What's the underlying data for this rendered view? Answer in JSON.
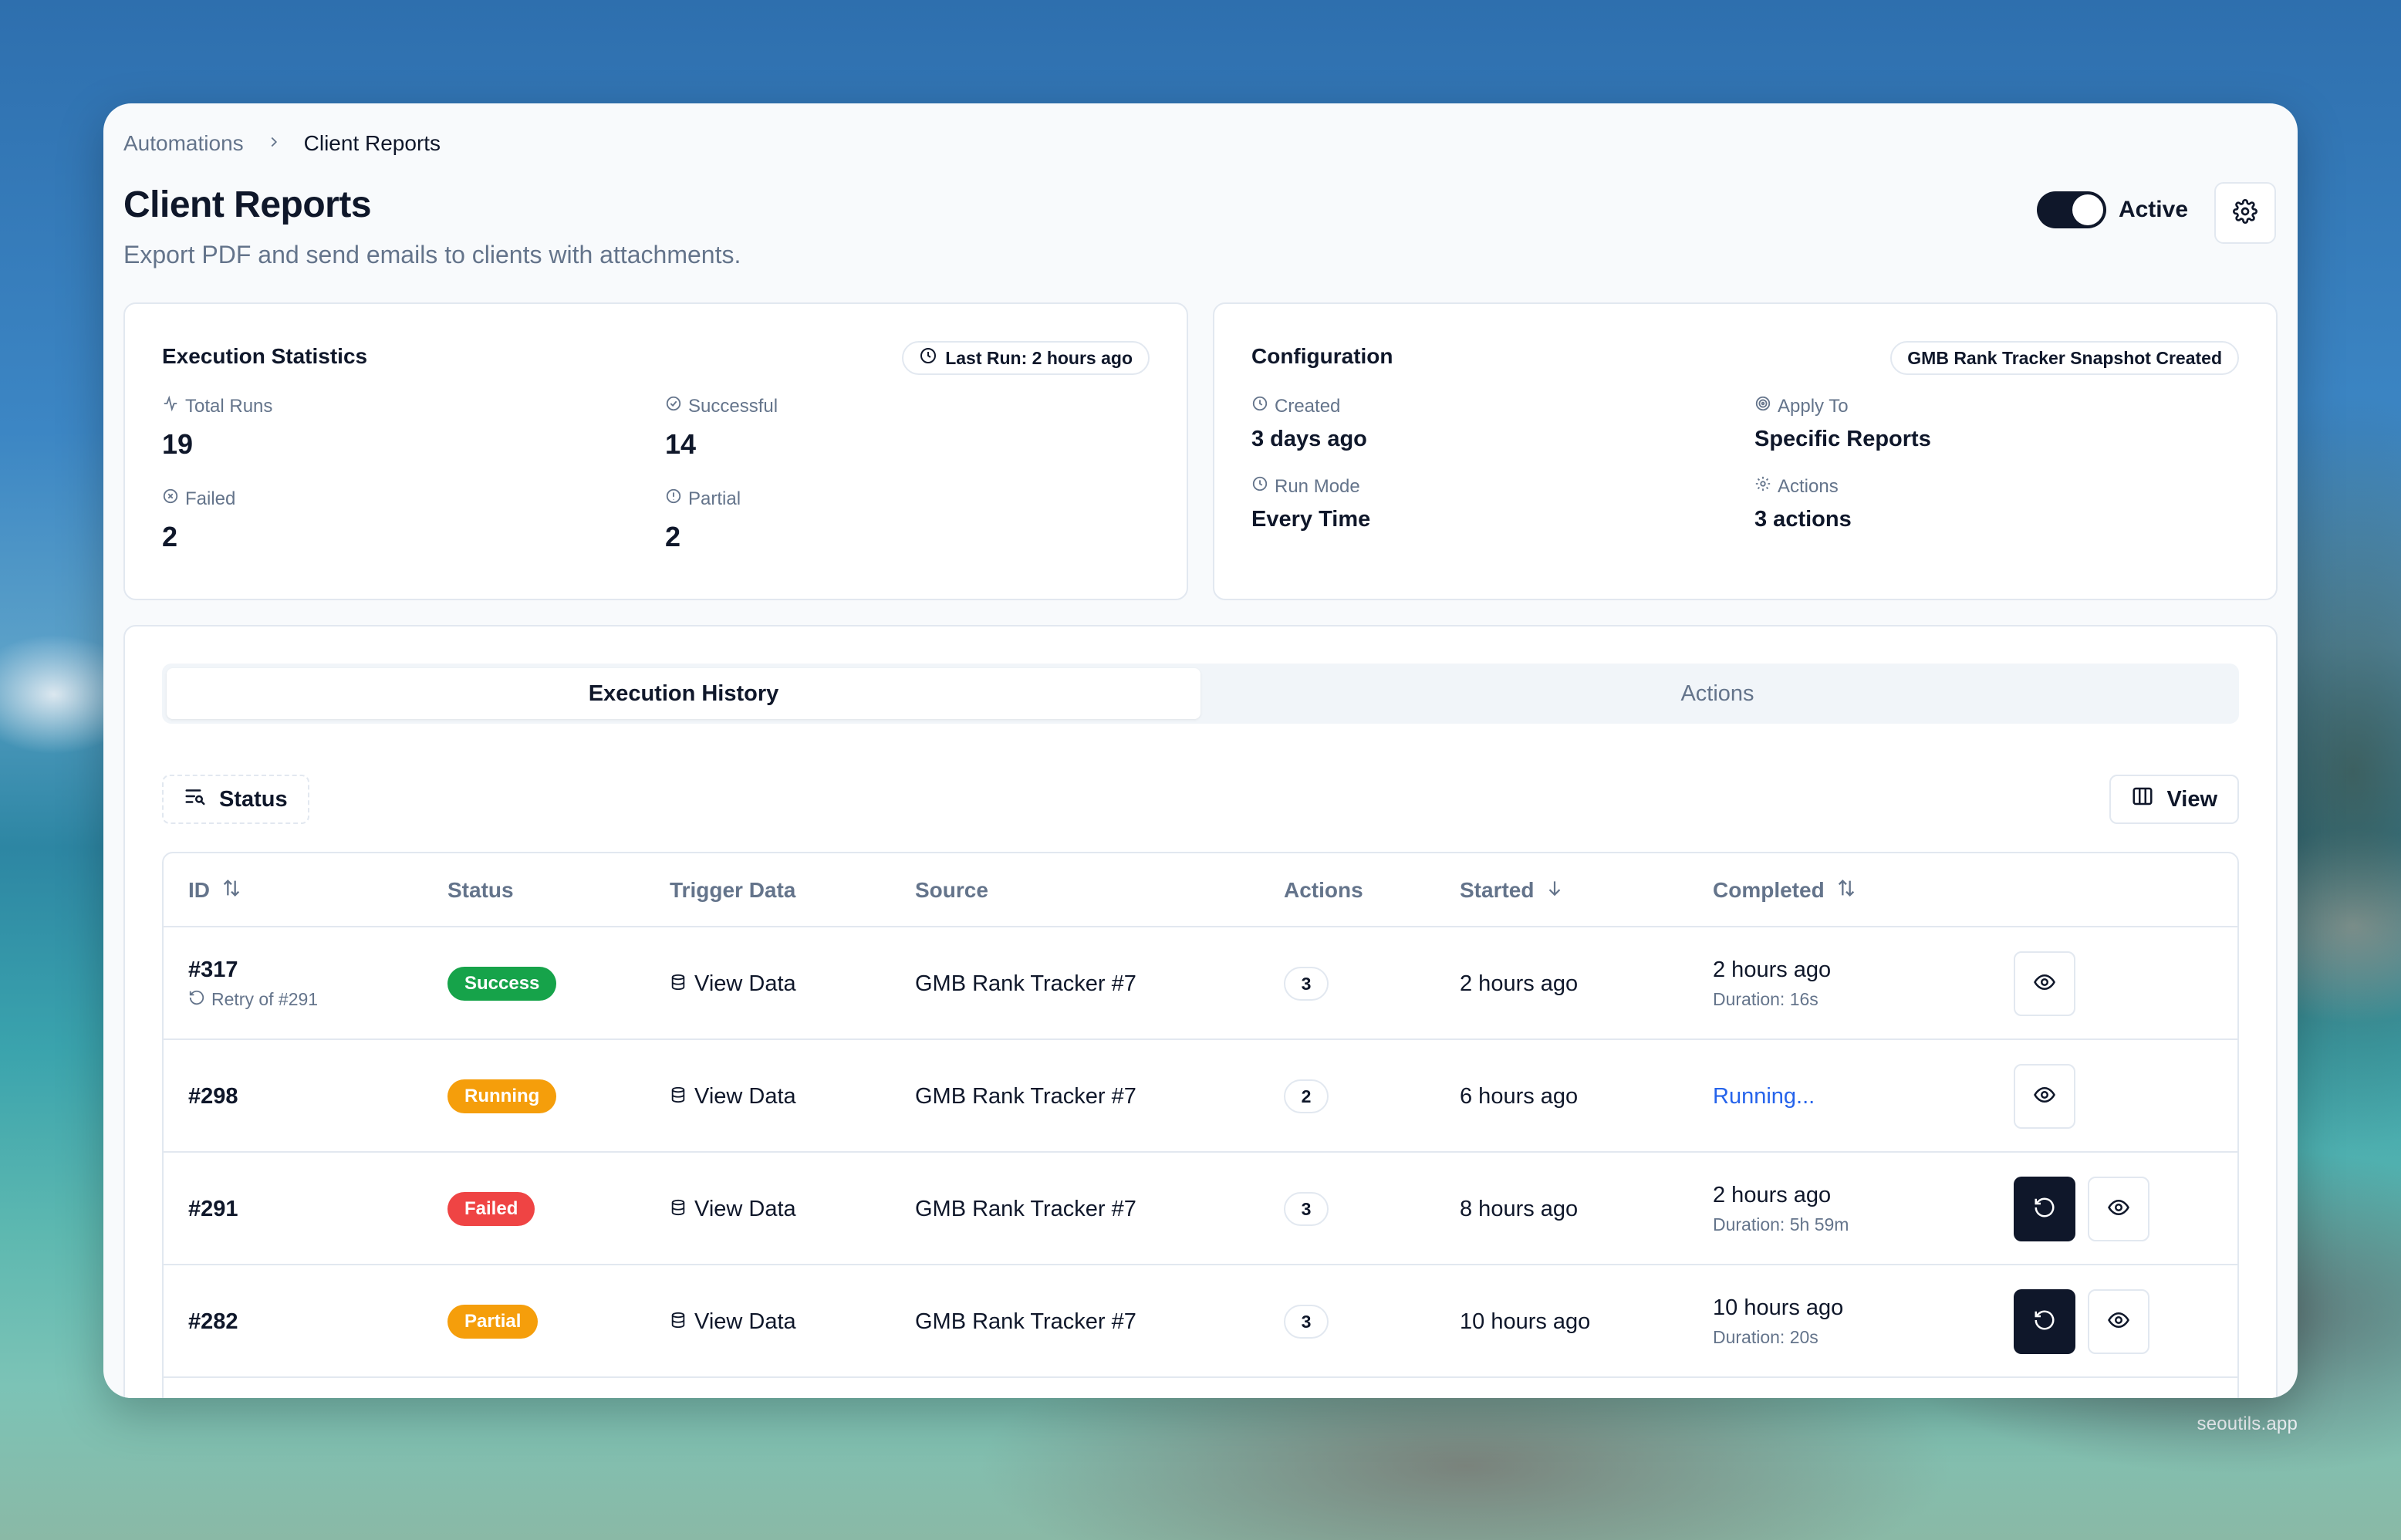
{
  "breadcrumb": {
    "parent": "Automations",
    "current": "Client Reports"
  },
  "page": {
    "title": "Client Reports",
    "subtitle": "Export PDF and send emails to clients with attachments.",
    "toggle_label": "Active"
  },
  "stats_card": {
    "title": "Execution Statistics",
    "last_run": "Last Run: 2 hours ago",
    "total_runs": {
      "label": "Total Runs",
      "value": "19"
    },
    "successful": {
      "label": "Successful",
      "value": "14"
    },
    "failed": {
      "label": "Failed",
      "value": "2"
    },
    "partial": {
      "label": "Partial",
      "value": "2"
    }
  },
  "config_card": {
    "title": "Configuration",
    "trigger": "GMB Rank Tracker Snapshot Created",
    "created": {
      "label": "Created",
      "value": "3 days ago"
    },
    "apply_to": {
      "label": "Apply To",
      "value": "Specific Reports"
    },
    "run_mode": {
      "label": "Run Mode",
      "value": "Every Time"
    },
    "actions": {
      "label": "Actions",
      "value": "3 actions"
    }
  },
  "tabs": [
    {
      "label": "Execution History",
      "active": true
    },
    {
      "label": "Actions",
      "active": false
    }
  ],
  "toolbar": {
    "filter_label": "Status",
    "view_label": "View"
  },
  "table": {
    "columns": [
      "ID",
      "Status",
      "Trigger Data",
      "Source",
      "Actions",
      "Started",
      "Completed"
    ],
    "rows": [
      {
        "id": "#317",
        "retry": "Retry of #291",
        "status": "Success",
        "status_kind": "success",
        "trigger": "View Data",
        "source": "GMB Rank Tracker #7",
        "actions": "3",
        "started": "2 hours ago",
        "completed": "2 hours ago",
        "duration": "Duration: 16s",
        "can_retry": false
      },
      {
        "id": "#298",
        "retry": "",
        "status": "Running",
        "status_kind": "running",
        "trigger": "View Data",
        "source": "GMB Rank Tracker #7",
        "actions": "2",
        "started": "6 hours ago",
        "completed": "Running...",
        "duration": "",
        "can_retry": false
      },
      {
        "id": "#291",
        "retry": "",
        "status": "Failed",
        "status_kind": "failed",
        "trigger": "View Data",
        "source": "GMB Rank Tracker #7",
        "actions": "3",
        "started": "8 hours ago",
        "completed": "2 hours ago",
        "duration": "Duration: 5h 59m",
        "can_retry": true
      },
      {
        "id": "#282",
        "retry": "",
        "status": "Partial",
        "status_kind": "partial",
        "trigger": "View Data",
        "source": "GMB Rank Tracker #7",
        "actions": "3",
        "started": "10 hours ago",
        "completed": "10 hours ago",
        "duration": "Duration: 20s",
        "can_retry": true
      }
    ]
  },
  "footer": {
    "brand": "seoutils.app"
  },
  "colors": {
    "success": "#16a34a",
    "running": "#f59e0b",
    "failed": "#ef4444",
    "link": "#2563eb",
    "dark": "#0f172a"
  }
}
